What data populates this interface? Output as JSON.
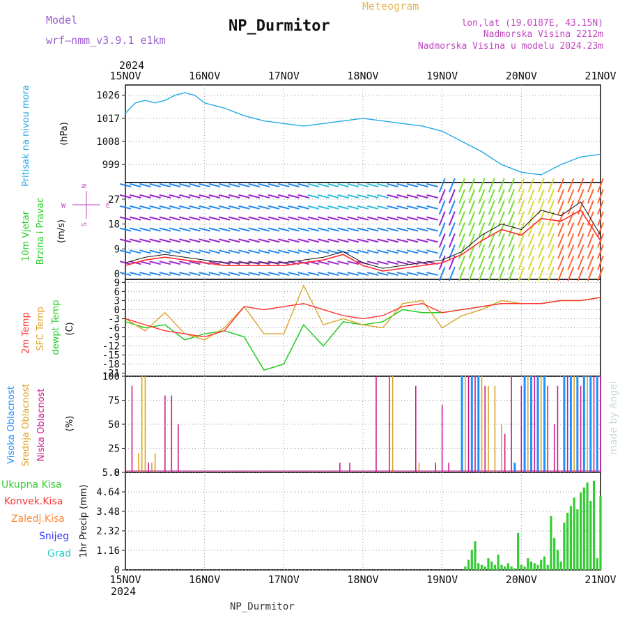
{
  "header": {
    "model_label": "Model",
    "model_name": "wrf–nmm_v3.9.1  e1km",
    "station_title": "NP_Durmitor",
    "product": "Meteogram",
    "lonlat": "lon,lat (19.0187E, 43.15N)",
    "elevation": "Nadmorska Visina 2212m",
    "model_elevation": "Nadmorska Visina u modelu 2024.23m"
  },
  "footer": {
    "station": "NP_Durmitor",
    "credit": "made by Angel"
  },
  "time_axis": {
    "year": "2024",
    "ticks": [
      "15NOV",
      "16NOV",
      "17NOV",
      "18NOV",
      "19NOV",
      "20NOV",
      "21NOV"
    ]
  },
  "colors": {
    "pressure": "#22a8e6",
    "wind_speed": "#ff2a2a",
    "wind_gust": "#111111",
    "temp_2m": "#ff3333",
    "temp_sfc": "#d9a528",
    "dewpoint": "#22cc22",
    "cloud_high": "#1e90ff",
    "cloud_mid": "#daa520",
    "cloud_low": "#cc1a8c",
    "precip_total": "#33cc33",
    "precip_conv": "#ff3333",
    "precip_frz": "#ff8833",
    "snow": "#3333ff",
    "hail": "#22cccc"
  },
  "chart_data": [
    {
      "type": "line",
      "panel": "pressure",
      "ylabel": "Pritisak na nivou mora",
      "unit": "(hPa)",
      "yticks": [
        "999",
        "1008",
        "1017",
        "1026"
      ],
      "ylim": [
        992,
        1030
      ],
      "x": [
        0,
        3,
        6,
        9,
        12,
        15,
        18,
        21,
        24,
        30,
        36,
        42,
        48,
        54,
        60,
        66,
        72,
        78,
        84,
        90,
        96,
        102,
        108,
        114,
        120,
        126,
        132,
        138,
        144
      ],
      "series": [
        {
          "values": [
            1019,
            1023,
            1024,
            1023,
            1024,
            1026,
            1027,
            1026,
            1023,
            1021,
            1018,
            1016,
            1015,
            1014,
            1015,
            1016,
            1017,
            1016,
            1015,
            1014,
            1012,
            1008,
            1004,
            999,
            996,
            995,
            999,
            1002,
            1003
          ]
        }
      ]
    },
    {
      "type": "line",
      "panel": "wind",
      "ylabel": "10m Vjetar",
      "ylabel2": "Brzina i Pravac",
      "unit": "(m/s)",
      "compass": {
        "n": "N",
        "s": "S",
        "e": "E",
        "w": "W"
      },
      "yticks": [
        "0",
        "9",
        "18",
        "27"
      ],
      "ylim": [
        -2,
        33
      ],
      "x": [
        0,
        6,
        12,
        18,
        24,
        30,
        36,
        42,
        48,
        54,
        60,
        66,
        72,
        78,
        84,
        90,
        96,
        102,
        108,
        114,
        120,
        126,
        132,
        138,
        144
      ],
      "series": [
        {
          "values": [
            3,
            5,
            6,
            5,
            4,
            3,
            3,
            3,
            3,
            4,
            5,
            7,
            3,
            1,
            2,
            3,
            4,
            7,
            12,
            16,
            14,
            20,
            19,
            23,
            12
          ]
        },
        {
          "values": [
            4,
            6,
            7,
            6,
            5,
            4,
            4,
            4,
            4,
            5,
            6,
            8,
            4,
            2,
            3,
            4,
            5,
            8,
            14,
            18,
            16,
            23,
            21,
            26,
            14
          ]
        }
      ],
      "barb_rows_yvals": [
        0,
        4,
        8,
        12,
        16,
        20,
        24,
        28,
        32
      ]
    },
    {
      "type": "line",
      "panel": "temperature",
      "labels": [
        "2m Temp",
        "SFC Temp",
        "dewpt Temp"
      ],
      "unit": "(C)",
      "yticks": [
        "-21",
        "-18",
        "-15",
        "-12",
        "-9",
        "-6",
        "-3",
        "0",
        "3",
        "6",
        "9"
      ],
      "ylim": [
        -22,
        10
      ],
      "x": [
        0,
        6,
        12,
        18,
        24,
        30,
        36,
        42,
        48,
        54,
        60,
        66,
        72,
        78,
        84,
        90,
        96,
        102,
        108,
        114,
        120,
        126,
        132,
        138,
        144
      ],
      "series": [
        {
          "name": "2m Temp",
          "values": [
            -3,
            -5,
            -7,
            -8,
            -9,
            -7,
            1,
            0,
            1,
            2,
            0,
            -2,
            -3,
            -2,
            1,
            2,
            -1,
            0,
            1,
            2,
            2,
            2,
            3,
            3,
            4
          ]
        },
        {
          "name": "SFC Temp",
          "values": [
            -3,
            -7,
            -1,
            -8,
            -10,
            -6,
            1,
            -8,
            -8,
            8,
            -5,
            -3,
            -5,
            -6,
            2,
            3,
            -6,
            -2,
            0,
            3,
            2,
            2,
            3,
            3,
            4
          ]
        },
        {
          "name": "dewpt Temp",
          "values": [
            -4,
            -6,
            -5,
            -10,
            -8,
            -7,
            -9,
            -20,
            -18,
            -5,
            -12,
            -4,
            -5,
            -4,
            0,
            -1,
            -1,
            0,
            1,
            2,
            2,
            2,
            3,
            3,
            4
          ]
        }
      ]
    },
    {
      "type": "bar",
      "panel": "clouds",
      "labels": [
        "Visoka Oblacnost",
        "Srednja Oblacnost",
        "Niska Oblacnost"
      ],
      "unit": "(%)",
      "yticks": [
        "0",
        "25",
        "50",
        "75",
        "100"
      ],
      "ylim": [
        0,
        100
      ],
      "bars": [
        [
          2,
          90,
          "low"
        ],
        [
          4,
          20,
          "mid"
        ],
        [
          5,
          100,
          "mid"
        ],
        [
          6,
          100,
          "mid"
        ],
        [
          7,
          10,
          "low"
        ],
        [
          8,
          10,
          "mid"
        ],
        [
          9,
          20,
          "mid"
        ],
        [
          12,
          80,
          "low"
        ],
        [
          14,
          80,
          "low"
        ],
        [
          16,
          50,
          "low"
        ],
        [
          65,
          10,
          "low"
        ],
        [
          68,
          10,
          "low"
        ],
        [
          76,
          100,
          "low"
        ],
        [
          80,
          100,
          "low"
        ],
        [
          81,
          100,
          "mid"
        ],
        [
          88,
          90,
          "low"
        ],
        [
          89,
          10,
          "mid"
        ],
        [
          94,
          10,
          "low"
        ],
        [
          96,
          70,
          "low"
        ],
        [
          98,
          10,
          "low"
        ],
        [
          102,
          100,
          "high"
        ],
        [
          103,
          100,
          "mid"
        ],
        [
          104,
          100,
          "low"
        ],
        [
          105,
          100,
          "high"
        ],
        [
          106,
          100,
          "low"
        ],
        [
          107,
          100,
          "high"
        ],
        [
          108,
          100,
          "mid"
        ],
        [
          109,
          90,
          "low"
        ],
        [
          110,
          90,
          "mid"
        ],
        [
          112,
          90,
          "mid"
        ],
        [
          114,
          50,
          "mid"
        ],
        [
          115,
          40,
          "low"
        ],
        [
          117,
          100,
          "low"
        ],
        [
          118,
          10,
          "high"
        ],
        [
          120,
          90,
          "low"
        ],
        [
          121,
          100,
          "high"
        ],
        [
          122,
          100,
          "mid"
        ],
        [
          123,
          100,
          "high"
        ],
        [
          124,
          100,
          "low"
        ],
        [
          125,
          100,
          "high"
        ],
        [
          126,
          100,
          "mid"
        ],
        [
          127,
          100,
          "high"
        ],
        [
          128,
          90,
          "low"
        ],
        [
          130,
          50,
          "low"
        ],
        [
          131,
          90,
          "low"
        ],
        [
          133,
          100,
          "high"
        ],
        [
          134,
          100,
          "low"
        ],
        [
          135,
          100,
          "high"
        ],
        [
          136,
          100,
          "mid"
        ],
        [
          137,
          100,
          "high"
        ],
        [
          138,
          90,
          "low"
        ],
        [
          139,
          100,
          "high"
        ],
        [
          140,
          100,
          "mid"
        ],
        [
          141,
          100,
          "high"
        ],
        [
          142,
          100,
          "low"
        ],
        [
          143,
          100,
          "high"
        ],
        [
          144,
          100,
          "low"
        ]
      ]
    },
    {
      "type": "bar",
      "panel": "precipitation",
      "labels": [
        "Ukupna Kisa",
        "Konvek.Kisa",
        "Zaledj.Kisa",
        "Snijeg",
        "Grad"
      ],
      "unit": "1hr Precip (mm)",
      "yticks": [
        "0",
        "1.16",
        "2.32",
        "3.48",
        "4.64",
        "5.8"
      ],
      "ylim": [
        0,
        5.8
      ],
      "x": [
        103,
        104,
        105,
        106,
        107,
        108,
        109,
        110,
        111,
        112,
        113,
        114,
        115,
        116,
        117,
        118,
        119,
        120,
        121,
        122,
        123,
        124,
        125,
        126,
        127,
        128,
        129,
        130,
        131,
        132,
        133,
        134,
        135,
        136,
        137,
        138,
        139,
        140,
        141,
        142,
        143,
        144
      ],
      "values": [
        0.2,
        0.6,
        1.2,
        1.7,
        0.4,
        0.3,
        0.2,
        0.7,
        0.5,
        0.3,
        0.9,
        0.3,
        0.2,
        0.4,
        0.2,
        0.1,
        2.2,
        0.3,
        0.2,
        0.7,
        0.5,
        0.4,
        0.3,
        0.6,
        0.8,
        0.3,
        3.2,
        1.9,
        1.2,
        0.5,
        2.8,
        3.4,
        3.8,
        4.3,
        3.6,
        4.6,
        4.9,
        5.2,
        4.1,
        5.3,
        0.7,
        4.4
      ]
    }
  ]
}
